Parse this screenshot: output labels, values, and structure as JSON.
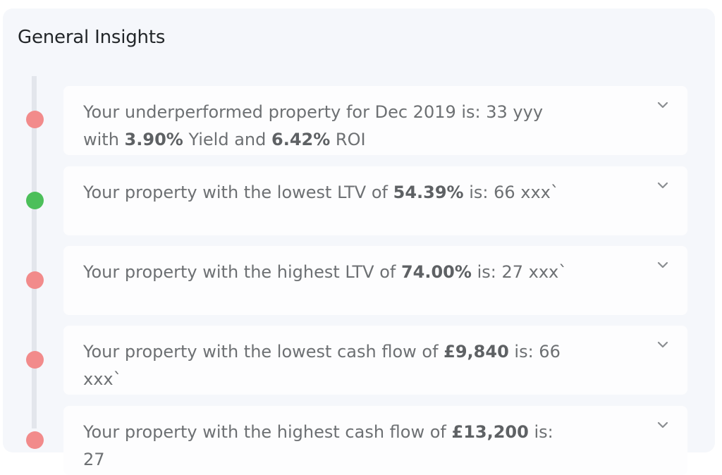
{
  "panel": {
    "title": "General Insights"
  },
  "insights": [
    {
      "status": "negative",
      "status_color": "#f28b8b",
      "parts": [
        "Your underperformed property for Dec 2019 is: 33 yyy with ",
        "3.90%",
        " Yield and ",
        "6.42%",
        " ROI"
      ],
      "expand_icon": "chevron-down-icon"
    },
    {
      "status": "positive",
      "status_color": "#4cbf5a",
      "parts": [
        "Your property with the lowest LTV of ",
        "54.39%",
        " is: 66 xxx`"
      ],
      "expand_icon": "chevron-down-icon"
    },
    {
      "status": "negative",
      "status_color": "#f28b8b",
      "parts": [
        "Your property with the highest LTV of ",
        "74.00%",
        " is: 27 xxx`"
      ],
      "expand_icon": "chevron-down-icon"
    },
    {
      "status": "negative",
      "status_color": "#f28b8b",
      "parts": [
        "Your property with the lowest cash flow of ",
        "£9,840",
        " is: 66 xxx`"
      ],
      "expand_icon": "chevron-down-icon"
    },
    {
      "status": "unknown",
      "status_color": "#f28b8b",
      "parts": [
        "Your property with the highest cash flow of ",
        "£13,200",
        " is: 27"
      ],
      "expand_icon": "chevron-down-icon"
    }
  ]
}
